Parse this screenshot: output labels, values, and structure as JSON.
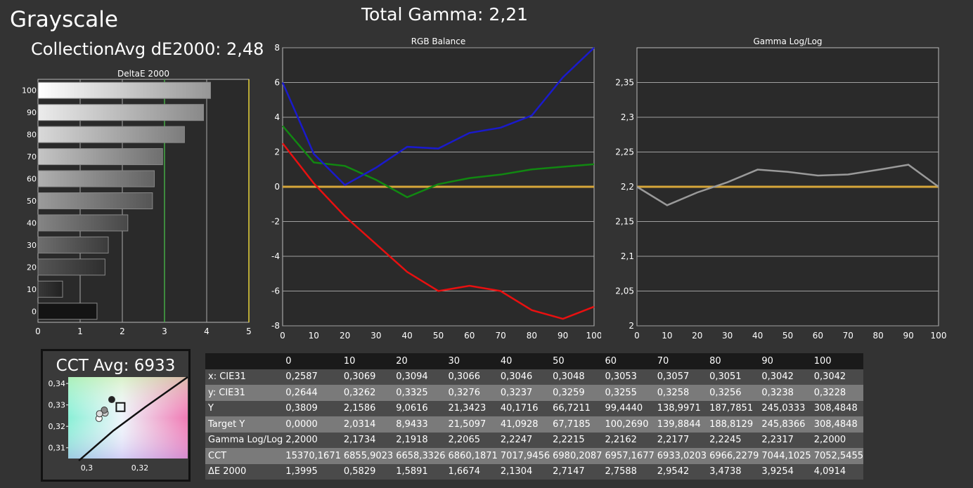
{
  "header": {
    "title": "Grayscale",
    "total_gamma": "Total Gamma: 2,21",
    "collection_avg": "CollectionAvg dE2000: 2,48",
    "cct_avg": "CCT Avg: 6933"
  },
  "colors": {
    "background": "#333333",
    "plot_bg": "#2a2a2a",
    "red": "#e81010",
    "green": "#118811",
    "blue": "#1a1acc",
    "target": "#d6a63a",
    "gamma_line": "#9a9a9a"
  },
  "chart_data": [
    {
      "type": "bar",
      "orientation": "horizontal",
      "title": "DeltaE 2000",
      "categories": [
        "0",
        "10",
        "20",
        "30",
        "40",
        "50",
        "60",
        "70",
        "80",
        "90",
        "100"
      ],
      "values": [
        1.3995,
        0.5829,
        1.5891,
        1.6674,
        2.1304,
        2.7147,
        2.7588,
        2.9542,
        3.4738,
        3.9254,
        4.0914
      ],
      "xlim": [
        0,
        5
      ],
      "xticks": [
        "0",
        "1",
        "2",
        "3",
        "4",
        "5"
      ],
      "reference_lines": [
        {
          "value": 3,
          "color": "#44aa44"
        },
        {
          "value": 5,
          "color": "#e6d23a"
        }
      ],
      "grid": true
    },
    {
      "type": "line",
      "title": "RGB Balance",
      "x": [
        0,
        10,
        20,
        30,
        40,
        50,
        60,
        70,
        80,
        90,
        100
      ],
      "ylim": [
        -8,
        8
      ],
      "xticks": [
        "0",
        "10",
        "20",
        "30",
        "40",
        "50",
        "60",
        "70",
        "80",
        "90",
        "100"
      ],
      "yticks": [
        "8",
        "6",
        "4",
        "2",
        "0",
        "-2",
        "-4",
        "-6",
        "-8"
      ],
      "series": [
        {
          "color": "#e81010",
          "values": [
            2.5,
            0.2,
            -1.7,
            -3.3,
            -4.9,
            -6.0,
            -5.7,
            -6.0,
            -7.1,
            -7.6,
            -6.9
          ]
        },
        {
          "color": "#118811",
          "values": [
            3.5,
            1.4,
            1.2,
            0.4,
            -0.6,
            0.15,
            0.5,
            0.7,
            1.0,
            1.15,
            1.3
          ]
        },
        {
          "color": "#1a1acc",
          "values": [
            6.0,
            1.9,
            0.1,
            1.1,
            2.3,
            2.2,
            3.1,
            3.4,
            4.1,
            6.3,
            8.0
          ]
        }
      ],
      "target": 0,
      "grid": true
    },
    {
      "type": "line",
      "title": "Gamma Log/Log",
      "x": [
        0,
        10,
        20,
        30,
        40,
        50,
        60,
        70,
        80,
        90,
        100
      ],
      "ylim": [
        2,
        2.4
      ],
      "xticks": [
        "0",
        "10",
        "20",
        "30",
        "40",
        "50",
        "60",
        "70",
        "80",
        "90",
        "100"
      ],
      "yticks": [
        "2,35",
        "2,3",
        "2,25",
        "2,2",
        "2,15",
        "2,1",
        "2,05",
        "2"
      ],
      "series": [
        {
          "color": "#9a9a9a",
          "values": [
            2.2,
            2.1734,
            2.1918,
            2.2065,
            2.2247,
            2.2215,
            2.2162,
            2.2177,
            2.2245,
            2.2317,
            2.2
          ]
        }
      ],
      "target": 2.2,
      "grid": true
    },
    {
      "type": "scatter",
      "title": "CCT Avg: 6933",
      "xlim": [
        0.293,
        0.338
      ],
      "ylim": [
        0.305,
        0.343
      ],
      "xticks": [
        "0,3",
        "0,32"
      ],
      "yticks": [
        "0,34",
        "0,33",
        "0,32",
        "0,31"
      ],
      "points": [
        {
          "x": 0.3069,
          "y": 0.3262,
          "fill": "#cccccc"
        },
        {
          "x": 0.3066,
          "y": 0.3276,
          "fill": "#888888"
        },
        {
          "x": 0.3094,
          "y": 0.3325,
          "fill": "#222222"
        },
        {
          "x": 0.3046,
          "y": 0.3237,
          "fill": "#ffffff"
        },
        {
          "x": 0.3048,
          "y": 0.3259,
          "fill": "#dddddd"
        }
      ],
      "target": {
        "x": 0.3127,
        "y": 0.329
      },
      "planckian_locus": [
        [
          0.297,
          0.304
        ],
        [
          0.31,
          0.318
        ],
        [
          0.322,
          0.329
        ],
        [
          0.33,
          0.336
        ],
        [
          0.338,
          0.343
        ]
      ]
    },
    {
      "type": "table",
      "columns": [
        "0",
        "10",
        "20",
        "30",
        "40",
        "50",
        "60",
        "70",
        "80",
        "90",
        "100"
      ],
      "rows": [
        {
          "label": "x: CIE31",
          "cells": [
            "0,2587",
            "0,3069",
            "0,3094",
            "0,3066",
            "0,3046",
            "0,3048",
            "0,3053",
            "0,3057",
            "0,3051",
            "0,3042",
            "0,3042"
          ]
        },
        {
          "label": "y: CIE31",
          "cells": [
            "0,2644",
            "0,3262",
            "0,3325",
            "0,3276",
            "0,3237",
            "0,3259",
            "0,3255",
            "0,3258",
            "0,3256",
            "0,3238",
            "0,3228"
          ]
        },
        {
          "label": "Y",
          "cells": [
            "0,3809",
            "2,1586",
            "9,0616",
            "21,3423",
            "40,1716",
            "66,7211",
            "99,4440",
            "138,9971",
            "187,7851",
            "245,0333",
            "308,4848"
          ]
        },
        {
          "label": "Target Y",
          "cells": [
            "0,0000",
            "2,0314",
            "8,9433",
            "21,5097",
            "41,0928",
            "67,7185",
            "100,2690",
            "139,8844",
            "188,8129",
            "245,8366",
            "308,4848"
          ]
        },
        {
          "label": "Gamma Log/Log",
          "cells": [
            "2,2000",
            "2,1734",
            "2,1918",
            "2,2065",
            "2,2247",
            "2,2215",
            "2,2162",
            "2,2177",
            "2,2245",
            "2,2317",
            "2,2000"
          ]
        },
        {
          "label": "CCT",
          "cells": [
            "15370,1671",
            "6855,9023",
            "6658,3326",
            "6860,1871",
            "7017,9456",
            "6980,2087",
            "6957,1677",
            "6933,0203",
            "6966,2279",
            "7044,1025",
            "7052,5455"
          ]
        },
        {
          "label": "ΔE 2000",
          "cells": [
            "1,3995",
            "0,5829",
            "1,5891",
            "1,6674",
            "2,1304",
            "2,7147",
            "2,7588",
            "2,9542",
            "3,4738",
            "3,9254",
            "4,0914"
          ]
        }
      ]
    }
  ]
}
